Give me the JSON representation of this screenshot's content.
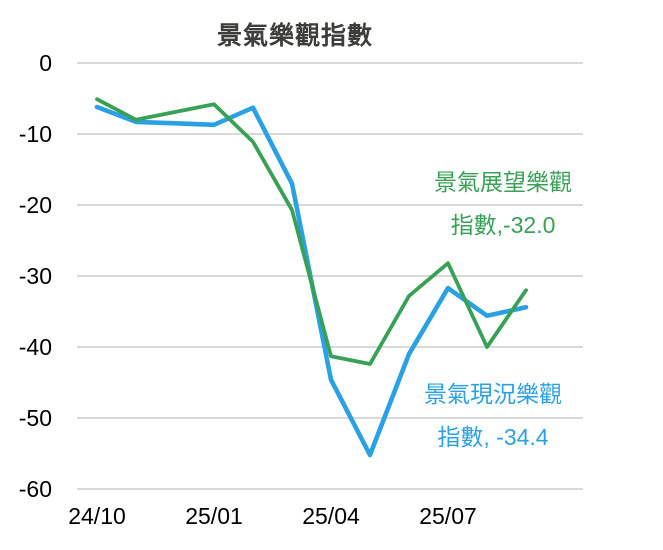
{
  "title": "景氣樂觀指數",
  "colors": {
    "outlook_green": "#39A156",
    "current_blue": "#2BA1E5",
    "gridline": "#D9D9D9",
    "title_text": "#3D3D3B",
    "axis_text": "#000000",
    "background": "#FFFFFF"
  },
  "chart_data": {
    "type": "line",
    "title": "景氣樂觀指數",
    "x": [
      "24/10",
      "24/11",
      "24/12",
      "25/01",
      "25/02",
      "25/03",
      "25/04",
      "25/05",
      "25/06",
      "25/07",
      "25/08",
      "25/09"
    ],
    "x_tick_labels": [
      "24/10",
      "25/01",
      "25/04",
      "25/07"
    ],
    "y_ticks": [
      0,
      -10,
      -20,
      -30,
      -40,
      -50,
      -60
    ],
    "ylim": [
      -60,
      0
    ],
    "grid": "horizontal",
    "legend_position": "inline-annotations",
    "series": [
      {
        "name": "景氣展望樂觀指數",
        "color": "#39A156",
        "values": [
          -5.1,
          -8.0,
          -6.9,
          -5.8,
          -11.1,
          -20.7,
          -41.3,
          -42.4,
          -32.8,
          -28.2,
          -40.0,
          -32.0
        ],
        "last_value": -32.0,
        "annotation_lines": [
          "景氣展望樂觀",
          "指數,-32.0"
        ]
      },
      {
        "name": "景氣現況樂觀指數",
        "color": "#2BA1E5",
        "values": [
          -6.2,
          -8.3,
          -8.5,
          -8.7,
          -6.3,
          -17.0,
          -44.6,
          -55.2,
          -41.0,
          -31.7,
          -35.6,
          -34.4
        ],
        "last_value": -34.4,
        "annotation_lines": [
          "景氣現況樂觀",
          "指數, -34.4"
        ]
      }
    ]
  }
}
